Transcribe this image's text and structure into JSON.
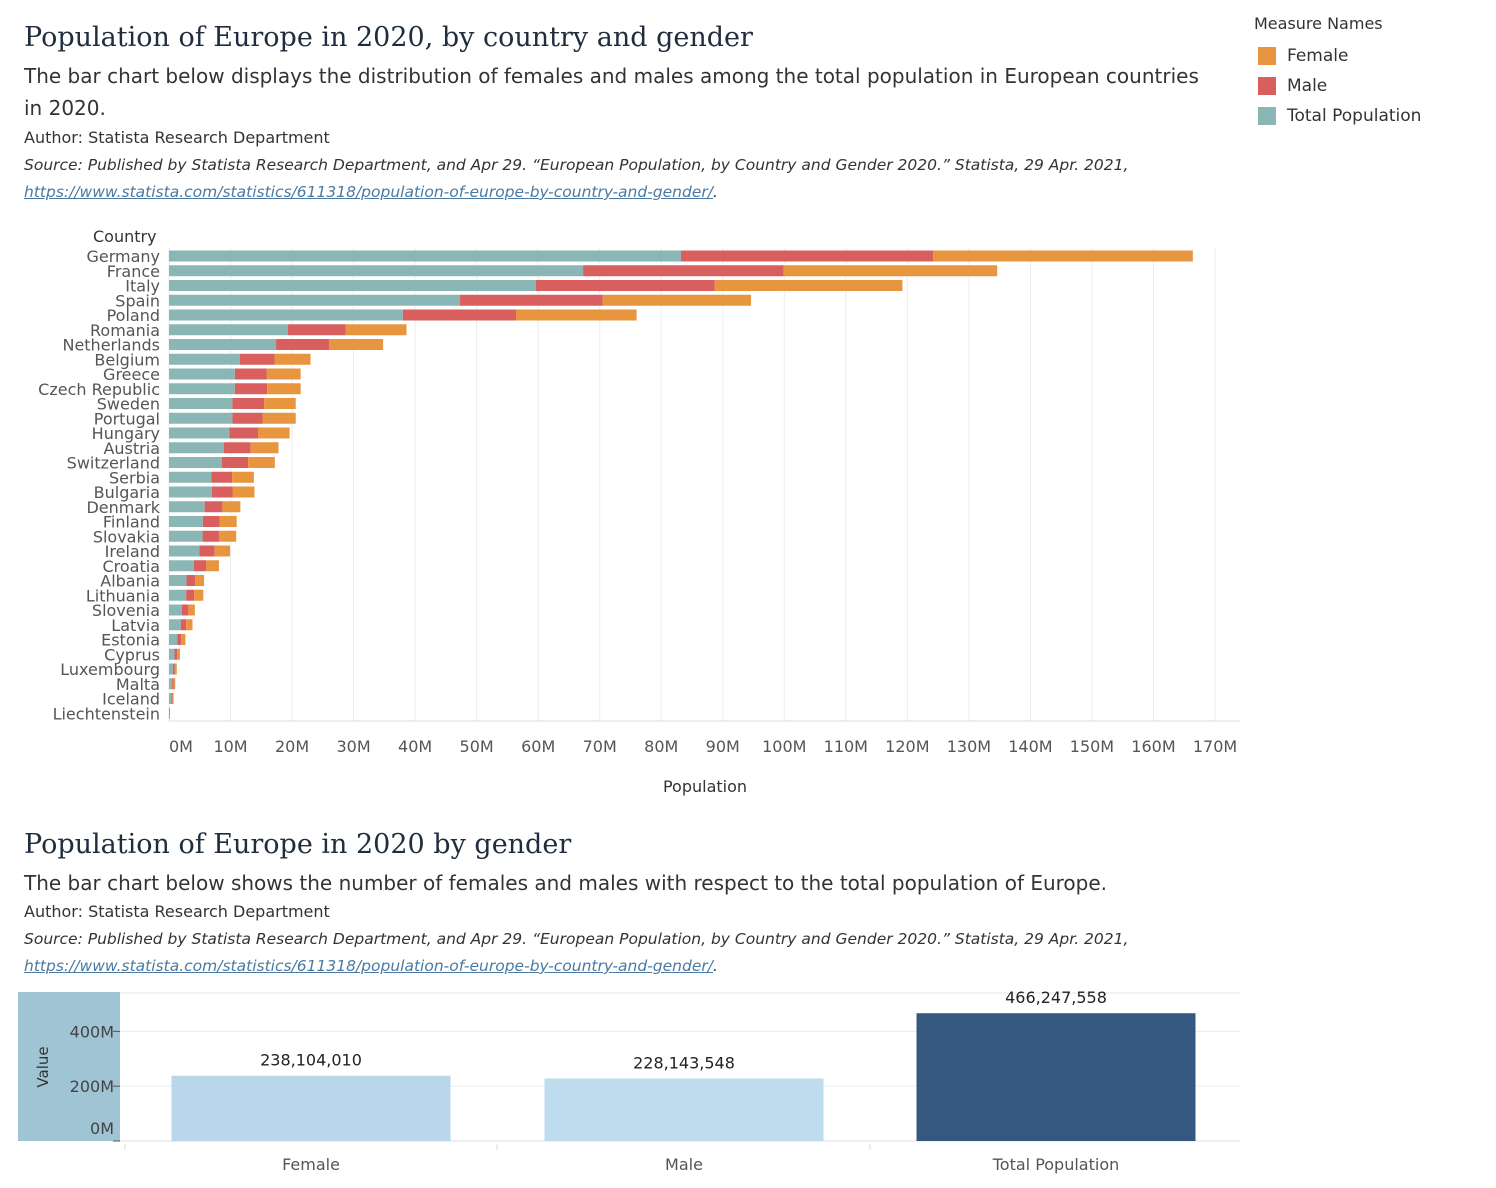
{
  "header1": {
    "title": "Population of Europe in 2020, by country and gender",
    "subtitle": "The bar chart below displays the distribution of females and males among the total population in European countries in 2020.",
    "author": "Author: Statista Research Department",
    "source_text": "Source: Published by Statista Research Department, and Apr 29. “European Population, by Country and Gender 2020.” Statista, 29 Apr. 2021,",
    "source_link": "https://www.statista.com/statistics/611318/population-of-europe-by-country-and-gender/",
    "source_end": "."
  },
  "header2": {
    "title": "Population of Europe in 2020 by gender",
    "subtitle": "The bar chart below shows the number of females and males with respect to the total population of Europe.",
    "author": "Author: Statista Research Department",
    "source_text": "Source: Published by Statista Research Department, and Apr 29. “European Population, by Country and Gender 2020.” Statista, 29 Apr. 2021,",
    "source_link": "https://www.statista.com/statistics/611318/population-of-europe-by-country-and-gender/",
    "source_end": "."
  },
  "legend": {
    "title": "Measure Names",
    "items": [
      {
        "label": "Female",
        "color": "#e8953f"
      },
      {
        "label": "Male",
        "color": "#d95f5f"
      },
      {
        "label": "Total Population",
        "color": "#8ab7b5"
      }
    ]
  },
  "chart_data": [
    {
      "type": "bar",
      "orientation": "horizontal",
      "stacked": true,
      "ylabel": "Country",
      "xlabel": "Population",
      "xlim": [
        0,
        170000000
      ],
      "x_ticks": [
        "0M",
        "10M",
        "20M",
        "30M",
        "40M",
        "50M",
        "60M",
        "70M",
        "80M",
        "90M",
        "100M",
        "110M",
        "120M",
        "130M",
        "140M",
        "150M",
        "160M",
        "170M"
      ],
      "grid": true,
      "legend_position": "top-right",
      "categories": [
        "Germany",
        "France",
        "Italy",
        "Spain",
        "Poland",
        "Romania",
        "Netherlands",
        "Belgium",
        "Greece",
        "Czech Republic",
        "Sweden",
        "Portugal",
        "Hungary",
        "Austria",
        "Switzerland",
        "Serbia",
        "Bulgaria",
        "Denmark",
        "Finland",
        "Slovakia",
        "Ireland",
        "Croatia",
        "Albania",
        "Lithuania",
        "Slovenia",
        "Latvia",
        "Estonia",
        "Cyprus",
        "Luxembourg",
        "Malta",
        "Iceland",
        "Liechtenstein"
      ],
      "series": [
        {
          "name": "Total Population",
          "color": "#8ab7b5",
          "values": [
            83200000,
            67300000,
            59600000,
            47300000,
            38000000,
            19300000,
            17400000,
            11500000,
            10700000,
            10700000,
            10300000,
            10300000,
            9800000,
            8900000,
            8600000,
            6900000,
            6950000,
            5800000,
            5500000,
            5460000,
            4960000,
            4060000,
            2850000,
            2790000,
            2100000,
            1910000,
            1330000,
            890000,
            630000,
            510000,
            370000,
            39000
          ]
        },
        {
          "name": "Male",
          "color": "#d95f5f",
          "values": [
            41000000,
            32600000,
            29100000,
            23200000,
            18400000,
            9400000,
            8600000,
            5650000,
            5200000,
            5250000,
            5150000,
            4900000,
            4670000,
            4380000,
            4270000,
            3350000,
            3370000,
            2880000,
            2720000,
            2660000,
            2460000,
            1960000,
            1430000,
            1290000,
            1050000,
            880000,
            640000,
            430000,
            320000,
            260000,
            190000,
            19000
          ]
        },
        {
          "name": "Female",
          "color": "#e8953f",
          "values": [
            42200000,
            34700000,
            30500000,
            24100000,
            19600000,
            9900000,
            8800000,
            5850000,
            5500000,
            5450000,
            5150000,
            5400000,
            5130000,
            4520000,
            4330000,
            3550000,
            3580000,
            2920000,
            2780000,
            2800000,
            2500000,
            2100000,
            1420000,
            1500000,
            1050000,
            1030000,
            690000,
            460000,
            310000,
            250000,
            180000,
            20000
          ]
        }
      ]
    },
    {
      "type": "bar",
      "orientation": "vertical",
      "ylabel": "Value",
      "xlabel": "",
      "ylim": [
        0,
        540000000
      ],
      "y_ticks": [
        "0M",
        "200M",
        "400M"
      ],
      "categories": [
        "Female",
        "Male",
        "Total Population"
      ],
      "values": [
        238104010,
        228143548,
        466247558
      ],
      "value_labels": [
        "238,104,010",
        "228,143,548",
        "466,247,558"
      ],
      "colors": [
        "#b9d6ea",
        "#bfdcee",
        "#34587f"
      ]
    }
  ]
}
